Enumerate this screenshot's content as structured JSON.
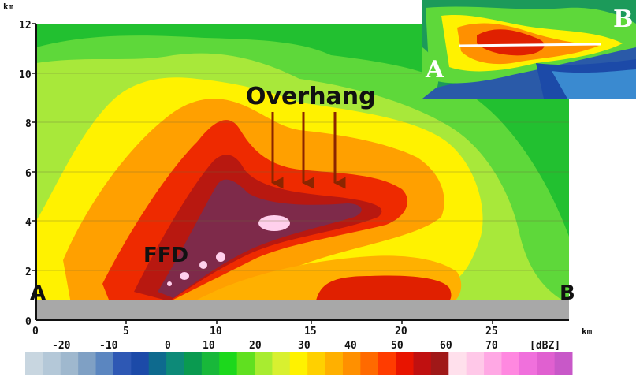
{
  "axes": {
    "y_unit": "km",
    "x_unit": "km",
    "y_ticks": [
      "0",
      "2",
      "4",
      "6",
      "8",
      "10",
      "12"
    ],
    "x_ticks": [
      "0",
      "5",
      "10",
      "15",
      "20",
      "25"
    ]
  },
  "annotations": {
    "overhang": "Overhang",
    "ffd": "FFD",
    "endpoint_a": "A",
    "endpoint_b": "B"
  },
  "inset": {
    "label_a": "A",
    "label_b": "B"
  },
  "colorbar": {
    "labels": [
      "-20",
      "-10",
      "0",
      "10",
      "20",
      "30",
      "40",
      "50",
      "60",
      "70"
    ],
    "unit": "[dBZ]",
    "colors": [
      "#c8d6e0",
      "#b4c8d8",
      "#9fb8ce",
      "#7fa0c4",
      "#5b86c0",
      "#2e58b4",
      "#1c4aa8",
      "#0e6a8e",
      "#0d8a78",
      "#0a9a50",
      "#18b83a",
      "#1cd81c",
      "#60e020",
      "#a8ec30",
      "#d8f030",
      "#fff200",
      "#ffd000",
      "#ffb000",
      "#ff9000",
      "#ff6a00",
      "#ff3c00",
      "#e81400",
      "#c01010",
      "#a01818",
      "#ffe0ec",
      "#ffc8e8",
      "#ffa8e4",
      "#ff88e0",
      "#f070dc",
      "#e060d0",
      "#c858c8"
    ]
  },
  "colors": {
    "ground": "#a8a8a8",
    "arrow": "#8b2500"
  }
}
